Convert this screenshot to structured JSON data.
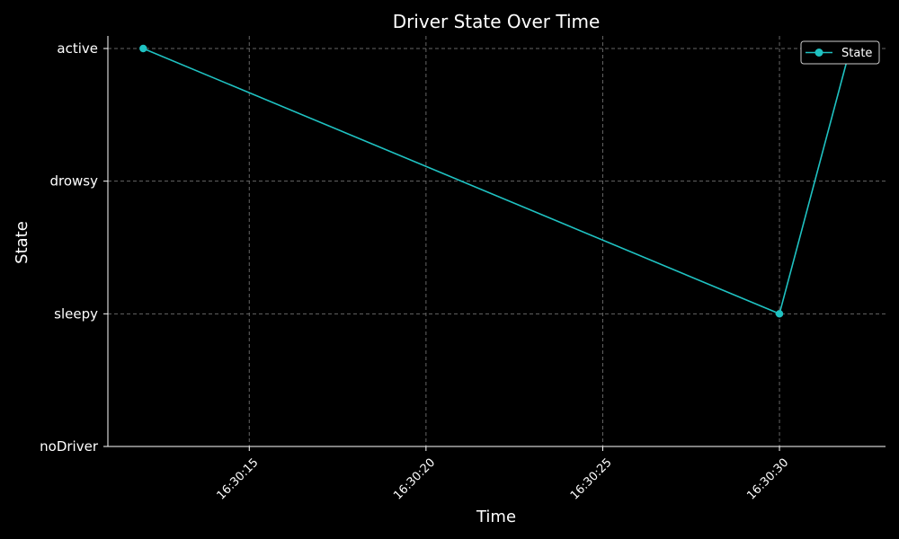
{
  "chart_data": {
    "type": "line",
    "title": "Driver State Over Time",
    "xlabel": "Time",
    "ylabel": "State",
    "x_ticks": [
      "16:30:15",
      "16:30:20",
      "16:30:25",
      "16:30:30"
    ],
    "y_categories": [
      "noDriver",
      "sleepy",
      "drowsy",
      "active"
    ],
    "series": [
      {
        "name": "State",
        "color": "#1fc2c2",
        "x": [
          "16:30:12",
          "16:30:30",
          "16:30:32"
        ],
        "y": [
          "active",
          "sleepy",
          "active"
        ]
      }
    ],
    "xlim": [
      "16:30:11",
      "16:30:33"
    ],
    "grid": true,
    "legend_position": "top-right",
    "colors": {
      "background": "#000000",
      "foreground": "#ffffff",
      "grid": "#666666",
      "series": "#1fc2c2"
    }
  }
}
